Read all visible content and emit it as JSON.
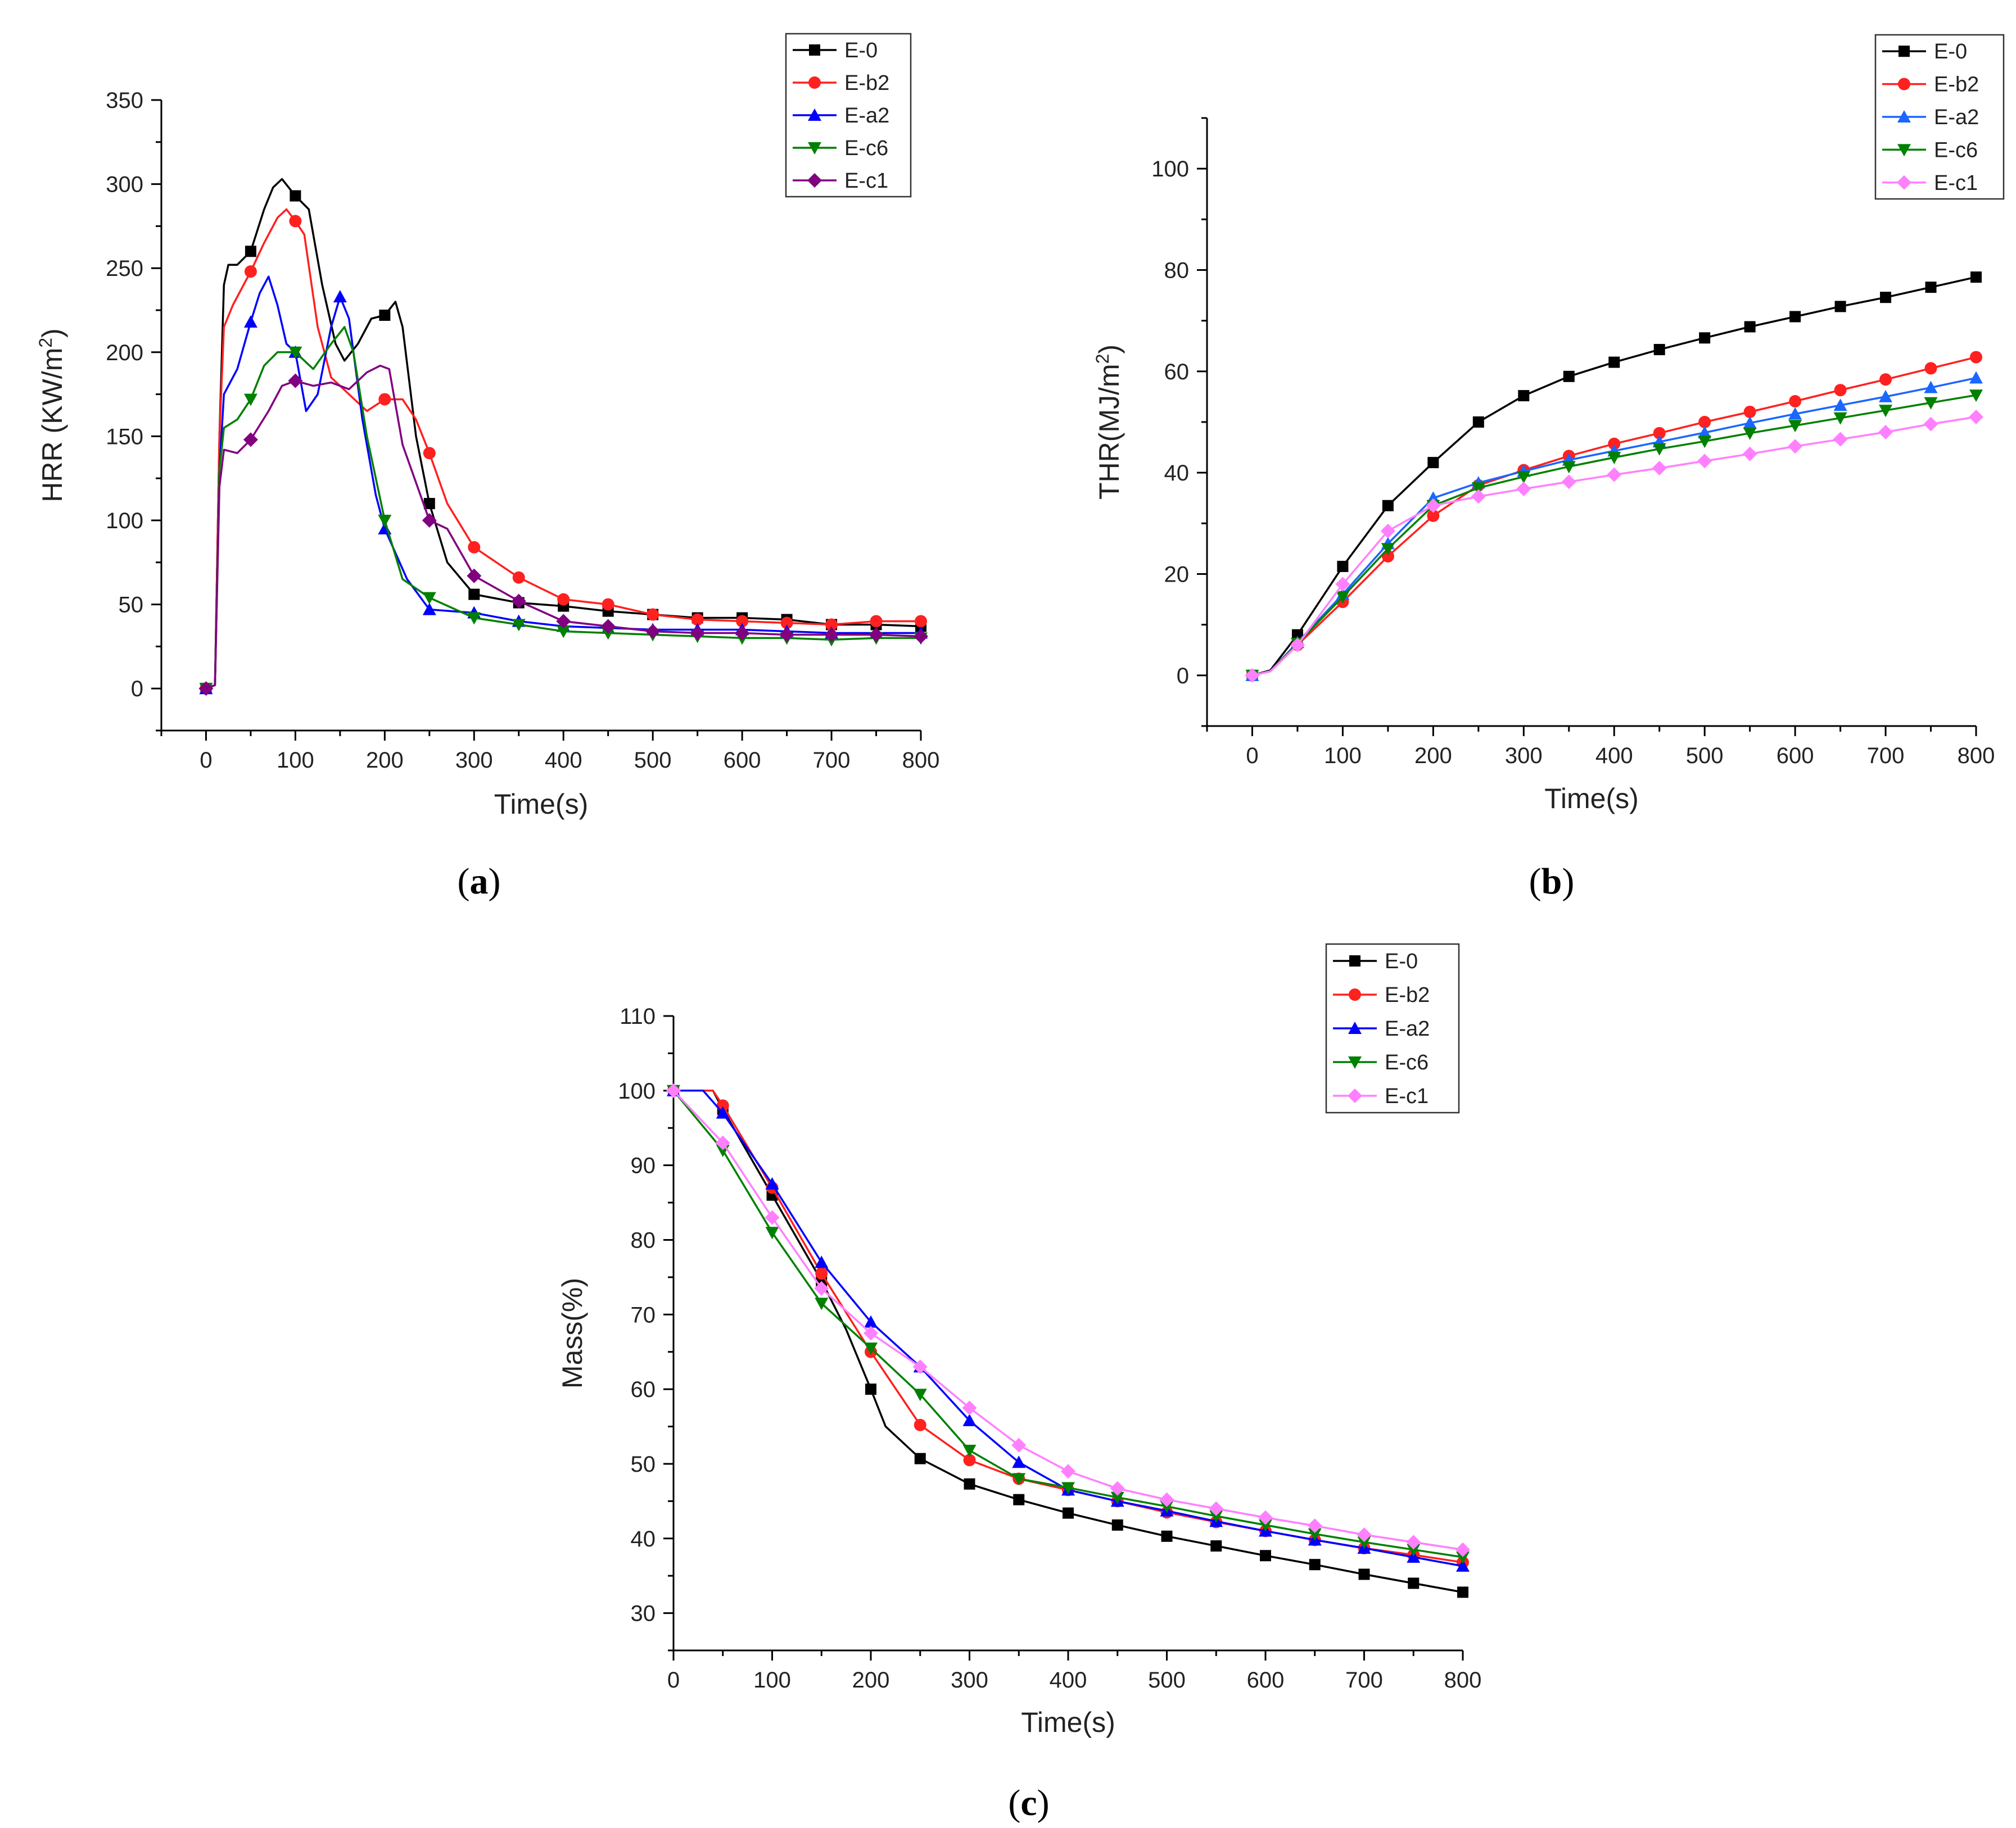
{
  "chart_data": [
    {
      "type": "line",
      "caption": [
        "(",
        "a",
        ")"
      ],
      "xlabel": "Time(s)",
      "ylabel": "HRR (KW/m",
      "ylabel_sup": "2",
      "ylabel_close": ")",
      "xlim": [
        -50,
        800
      ],
      "ylim": [
        -25,
        350
      ],
      "xticks": [
        0,
        100,
        200,
        300,
        400,
        500,
        600,
        700,
        800
      ],
      "yticks": [
        0,
        50,
        100,
        150,
        200,
        250,
        300,
        350
      ],
      "series": [
        {
          "name": "E-0",
          "color": "#000000",
          "marker": "square",
          "x": [
            0,
            10,
            15,
            20,
            25,
            35,
            50,
            65,
            75,
            85,
            100,
            115,
            130,
            145,
            155,
            170,
            185,
            200,
            212,
            220,
            235,
            250,
            270,
            300,
            350,
            400,
            450,
            500,
            550,
            600,
            650,
            700,
            750,
            800
          ],
          "y": [
            0,
            2,
            150,
            240,
            252,
            252,
            260,
            285,
            298,
            303,
            293,
            285,
            240,
            205,
            195,
            205,
            220,
            222,
            230,
            215,
            150,
            110,
            75,
            56,
            51,
            49,
            46,
            44,
            42,
            42,
            41,
            38,
            38,
            37
          ]
        },
        {
          "name": "E-b2",
          "color": "#ff2020",
          "marker": "circle",
          "x": [
            0,
            10,
            15,
            20,
            30,
            50,
            65,
            80,
            90,
            100,
            110,
            125,
            140,
            160,
            180,
            200,
            220,
            235,
            250,
            270,
            300,
            350,
            400,
            450,
            500,
            550,
            600,
            650,
            700,
            750,
            800
          ],
          "y": [
            0,
            2,
            150,
            215,
            228,
            248,
            265,
            280,
            285,
            278,
            270,
            215,
            185,
            175,
            165,
            172,
            172,
            160,
            140,
            110,
            84,
            66,
            53,
            50,
            44,
            41,
            40,
            39,
            38,
            40,
            40
          ]
        },
        {
          "name": "E-a2",
          "color": "#0000ff",
          "marker": "triangle",
          "x": [
            0,
            10,
            15,
            20,
            35,
            50,
            60,
            70,
            80,
            90,
            100,
            112,
            125,
            140,
            150,
            160,
            175,
            190,
            200,
            225,
            250,
            300,
            350,
            400,
            450,
            500,
            550,
            600,
            650,
            700,
            750,
            800
          ],
          "y": [
            0,
            2,
            130,
            175,
            190,
            218,
            235,
            245,
            228,
            205,
            200,
            165,
            175,
            215,
            233,
            220,
            160,
            115,
            95,
            65,
            47,
            45,
            40,
            37,
            36,
            35,
            35,
            35,
            34,
            33,
            33,
            33
          ]
        },
        {
          "name": "E-c6",
          "color": "#008000",
          "marker": "triangle-down",
          "x": [
            0,
            10,
            15,
            20,
            35,
            50,
            65,
            80,
            100,
            120,
            140,
            155,
            165,
            180,
            200,
            220,
            250,
            300,
            350,
            400,
            450,
            500,
            550,
            600,
            650,
            700,
            750,
            800
          ],
          "y": [
            0,
            2,
            130,
            155,
            160,
            172,
            192,
            200,
            200,
            190,
            205,
            215,
            200,
            150,
            100,
            65,
            54,
            42,
            38,
            34,
            33,
            32,
            31,
            30,
            30,
            29,
            30,
            30
          ]
        },
        {
          "name": "E-c1",
          "color": "#800080",
          "marker": "diamond",
          "x": [
            0,
            10,
            15,
            20,
            35,
            50,
            70,
            85,
            100,
            120,
            140,
            160,
            180,
            195,
            205,
            220,
            250,
            270,
            300,
            350,
            400,
            450,
            500,
            550,
            600,
            650,
            700,
            750,
            800
          ],
          "y": [
            0,
            2,
            120,
            142,
            140,
            148,
            165,
            180,
            183,
            180,
            182,
            178,
            188,
            192,
            190,
            145,
            100,
            95,
            67,
            52,
            40,
            37,
            34,
            33,
            33,
            32,
            32,
            32,
            31
          ]
        }
      ],
      "legend": [
        "E-0",
        "E-b2",
        "E-a2",
        "E-c6",
        "E-c1"
      ]
    },
    {
      "type": "line",
      "caption": [
        "(",
        "b",
        ")"
      ],
      "xlabel": "Time(s)",
      "ylabel": "THR(MJ/m",
      "ylabel_sup": "2",
      "ylabel_close": ")",
      "xlim": [
        -50,
        800
      ],
      "ylim": [
        -10,
        110
      ],
      "xticks": [
        0,
        100,
        200,
        300,
        400,
        500,
        600,
        700,
        800
      ],
      "yticks": [
        0,
        20,
        40,
        60,
        80,
        100
      ],
      "series": [
        {
          "name": "E-0",
          "color": "#000000",
          "marker": "square",
          "x": [
            0,
            20,
            50,
            100,
            150,
            200,
            250,
            300,
            350,
            400,
            450,
            500,
            550,
            600,
            650,
            700,
            750,
            800
          ],
          "y": [
            0,
            1,
            8,
            21.5,
            33.5,
            42,
            50,
            55.2,
            59,
            61.8,
            64.3,
            66.6,
            68.8,
            70.8,
            72.8,
            74.6,
            76.6,
            78.6
          ]
        },
        {
          "name": "E-b2",
          "color": "#ff2020",
          "marker": "circle",
          "x": [
            0,
            20,
            50,
            100,
            150,
            200,
            250,
            300,
            350,
            400,
            450,
            500,
            550,
            600,
            650,
            700,
            750,
            800
          ],
          "y": [
            0,
            0.8,
            6,
            14.5,
            23.5,
            31.5,
            37.5,
            40.5,
            43.3,
            45.7,
            47.8,
            50,
            52,
            54.1,
            56.3,
            58.4,
            60.6,
            62.8
          ]
        },
        {
          "name": "E-a2",
          "color": "#1a66ff",
          "marker": "triangle",
          "x": [
            0,
            20,
            50,
            100,
            150,
            200,
            250,
            300,
            350,
            400,
            450,
            500,
            550,
            600,
            650,
            700,
            750,
            800
          ],
          "y": [
            0,
            0.8,
            6.5,
            16,
            26,
            35,
            38,
            40.3,
            42.5,
            44.3,
            46.1,
            47.9,
            49.8,
            51.6,
            53.3,
            55,
            56.8,
            58.7
          ]
        },
        {
          "name": "E-c6",
          "color": "#008000",
          "marker": "triangle-down",
          "x": [
            0,
            20,
            50,
            100,
            150,
            200,
            250,
            300,
            350,
            400,
            450,
            500,
            550,
            600,
            650,
            700,
            750,
            800
          ],
          "y": [
            0,
            0.8,
            6.3,
            15.5,
            25,
            33.5,
            37,
            39.2,
            41.2,
            43,
            44.7,
            46.2,
            47.8,
            49.3,
            50.8,
            52.3,
            53.8,
            55.3
          ]
        },
        {
          "name": "E-c1",
          "color": "#ff80ff",
          "marker": "diamond",
          "x": [
            0,
            20,
            50,
            100,
            150,
            200,
            250,
            300,
            350,
            400,
            450,
            500,
            550,
            600,
            650,
            700,
            750,
            800
          ],
          "y": [
            0,
            0.8,
            6,
            18,
            28.5,
            33.5,
            35.3,
            36.8,
            38.2,
            39.6,
            40.9,
            42.3,
            43.7,
            45.2,
            46.6,
            48,
            49.6,
            51
          ]
        }
      ],
      "legend": [
        "E-0",
        "E-b2",
        "E-a2",
        "E-c6",
        "E-c1"
      ]
    },
    {
      "type": "line",
      "caption": [
        "(",
        "c",
        ")"
      ],
      "xlabel": "Time(s)",
      "ylabel": "Mass(%)",
      "xlim": [
        0,
        800
      ],
      "ylim": [
        25,
        110
      ],
      "xticks": [
        0,
        100,
        200,
        300,
        400,
        500,
        600,
        700,
        800
      ],
      "yticks": [
        30,
        40,
        50,
        60,
        70,
        80,
        90,
        100,
        110
      ],
      "series": [
        {
          "name": "E-0",
          "color": "#000000",
          "marker": "square",
          "x": [
            0,
            40,
            50,
            100,
            150,
            175,
            200,
            215,
            250,
            300,
            350,
            400,
            450,
            500,
            550,
            600,
            650,
            700,
            750,
            800
          ],
          "y": [
            100,
            100,
            97.5,
            86,
            74.5,
            68,
            60,
            55,
            50.7,
            47.3,
            45.2,
            43.4,
            41.8,
            40.3,
            39,
            37.7,
            36.5,
            35.2,
            34,
            32.8
          ]
        },
        {
          "name": "E-b2",
          "color": "#ff2020",
          "marker": "circle",
          "x": [
            0,
            40,
            50,
            100,
            150,
            200,
            250,
            300,
            350,
            400,
            450,
            500,
            550,
            600,
            650,
            700,
            750,
            800
          ],
          "y": [
            100,
            100,
            98,
            87,
            75.5,
            65,
            55.2,
            50.5,
            48,
            46.5,
            45,
            43.5,
            42.2,
            41,
            39.8,
            38.7,
            37.8,
            36.8
          ]
        },
        {
          "name": "E-a2",
          "color": "#0000ff",
          "marker": "triangle",
          "x": [
            0,
            30,
            50,
            100,
            150,
            200,
            250,
            300,
            350,
            400,
            450,
            500,
            550,
            600,
            650,
            700,
            750,
            800
          ],
          "y": [
            100,
            100,
            97,
            87.5,
            77,
            69,
            63,
            55.8,
            50.2,
            46.5,
            45,
            43.7,
            42.3,
            41,
            39.8,
            38.7,
            37.5,
            36.3
          ]
        },
        {
          "name": "E-c6",
          "color": "#008000",
          "marker": "triangle-down",
          "x": [
            0,
            50,
            100,
            150,
            200,
            250,
            300,
            350,
            400,
            450,
            500,
            550,
            600,
            650,
            700,
            750,
            800
          ],
          "y": [
            100,
            92,
            81,
            71.5,
            65.5,
            59.3,
            51.8,
            48,
            46.8,
            45.5,
            44.3,
            43,
            41.8,
            40.6,
            39.5,
            38.5,
            37.5
          ]
        },
        {
          "name": "E-c1",
          "color": "#ff80ff",
          "marker": "diamond",
          "x": [
            0,
            50,
            100,
            150,
            200,
            250,
            300,
            350,
            400,
            450,
            500,
            550,
            600,
            650,
            700,
            750,
            800
          ],
          "y": [
            100,
            93,
            83,
            73.5,
            67.5,
            63,
            57.5,
            52.5,
            49,
            46.7,
            45.2,
            44,
            42.8,
            41.7,
            40.5,
            39.5,
            38.5
          ]
        }
      ],
      "legend": [
        "E-0",
        "E-b2",
        "E-a2",
        "E-c6",
        "E-c1"
      ]
    }
  ]
}
